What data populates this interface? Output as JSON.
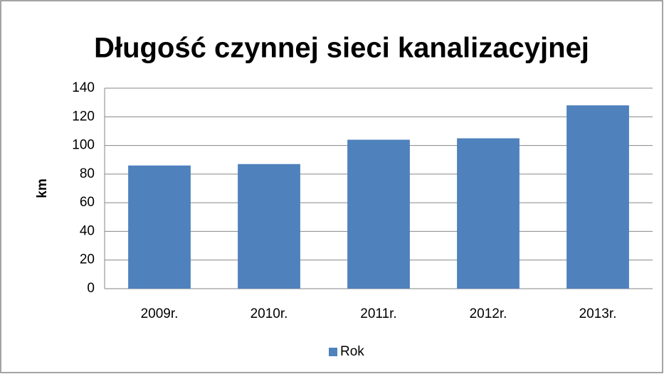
{
  "chart_data": {
    "type": "bar",
    "title": "Długość czynnej sieci kanalizacyjnej",
    "y_label": "km",
    "categories": [
      "2009r.",
      "2010r.",
      "2011r.",
      "2012r.",
      "2013r."
    ],
    "series": [
      {
        "name": "Rok",
        "color": "#4f81bd",
        "values": [
          86,
          87,
          104,
          105,
          128
        ]
      }
    ],
    "ylim": [
      0,
      140
    ],
    "yticks": [
      0,
      20,
      40,
      60,
      80,
      100,
      120,
      140
    ],
    "grid": true,
    "legend": "bottom"
  }
}
